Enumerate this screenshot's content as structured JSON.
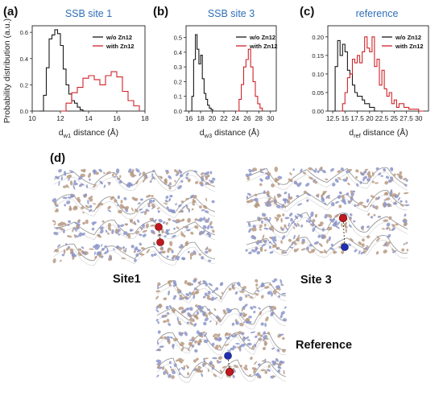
{
  "colors": {
    "series_without": "#1a1a1a",
    "series_with": "#d0232a",
    "title_blue": "#2e6fb8",
    "rna_tan": "#b99a82",
    "rna_blue": "#8c95c8",
    "sphere_red": "#c0181e",
    "sphere_blue": "#1f2eb0"
  },
  "figure": {
    "ylabel": "Probability distribution (a.u.)",
    "panel_d_letter": "(d)",
    "structure_labels": {
      "site1": "Site1",
      "site3": "Site 3",
      "reference": "Reference"
    }
  },
  "chart_data": [
    {
      "panel": "(a)",
      "type": "line",
      "title": "SSB site 1",
      "xlabel_main": "d",
      "xlabel_sub": "w1",
      "xlabel_rest": "distance (Å)",
      "xlim": [
        10,
        18
      ],
      "ylim": [
        0,
        0.65
      ],
      "xticks": [
        "10",
        "12",
        "14",
        "16",
        "18"
      ],
      "yticks": [
        "0.0",
        "0.2",
        "0.4",
        "0.6"
      ],
      "legend": [
        "w/o Zn12",
        "with Zn12"
      ],
      "legend_position": "top-right",
      "series": [
        {
          "name": "w/o Zn12",
          "color": "#1a1a1a",
          "x": [
            10.5,
            10.8,
            11.0,
            11.2,
            11.4,
            11.6,
            11.8,
            12.0,
            12.2,
            12.4,
            12.6,
            12.8,
            13.0,
            13.2,
            13.4,
            13.6,
            13.8
          ],
          "values": [
            0.0,
            0.12,
            0.33,
            0.55,
            0.58,
            0.62,
            0.59,
            0.5,
            0.32,
            0.2,
            0.13,
            0.08,
            0.06,
            0.03,
            0.01,
            0.0,
            0.0
          ]
        },
        {
          "name": "with Zn12",
          "color": "#d0232a",
          "x": [
            12.0,
            12.4,
            12.8,
            13.2,
            13.6,
            14.0,
            14.4,
            14.8,
            15.2,
            15.6,
            16.0,
            16.4,
            16.8,
            17.2,
            17.6
          ],
          "values": [
            0.0,
            0.06,
            0.14,
            0.18,
            0.25,
            0.27,
            0.24,
            0.2,
            0.27,
            0.3,
            0.26,
            0.15,
            0.08,
            0.04,
            0.0
          ]
        }
      ]
    },
    {
      "panel": "(b)",
      "type": "line",
      "title": "SSB site 3",
      "xlabel_main": "d",
      "xlabel_sub": "w3",
      "xlabel_rest": "distance (Å)",
      "xlim": [
        15.5,
        31
      ],
      "ylim": [
        0,
        0.58
      ],
      "xticks": [
        "16",
        "18",
        "20",
        "22",
        "24",
        "26",
        "28",
        "30"
      ],
      "yticks": [
        "0.0",
        "0.1",
        "0.2",
        "0.3",
        "0.4",
        "0.5"
      ],
      "legend": [
        "w/o Zn12",
        "with Zn12"
      ],
      "legend_position": "top-right",
      "series": [
        {
          "name": "w/o Zn12",
          "color": "#1a1a1a",
          "x": [
            16.2,
            16.5,
            16.8,
            17.1,
            17.4,
            17.7,
            18.0,
            18.3,
            18.6,
            18.9,
            19.2,
            19.5,
            19.8,
            20.1
          ],
          "values": [
            0.0,
            0.1,
            0.35,
            0.52,
            0.42,
            0.32,
            0.38,
            0.22,
            0.12,
            0.08,
            0.04,
            0.02,
            0.01,
            0.0
          ]
        },
        {
          "name": "with Zn12",
          "color": "#d0232a",
          "x": [
            24.2,
            24.6,
            25.0,
            25.4,
            25.8,
            26.2,
            26.6,
            27.0,
            27.4,
            27.8,
            28.2,
            28.6
          ],
          "values": [
            0.0,
            0.08,
            0.18,
            0.3,
            0.35,
            0.42,
            0.3,
            0.2,
            0.1,
            0.05,
            0.02,
            0.0
          ]
        }
      ]
    },
    {
      "panel": "(c)",
      "type": "line",
      "title": "reference",
      "xlabel_main": "d",
      "xlabel_sub": "ref",
      "xlabel_rest": "distance (Å)",
      "xlim": [
        11.5,
        32
      ],
      "ylim": [
        0,
        0.23
      ],
      "xticks": [
        "12.5",
        "15",
        "17.5",
        "20",
        "22.5",
        "25",
        "27.5",
        "30"
      ],
      "yticks": [
        "0.00",
        "0.05",
        "0.10",
        "0.15",
        "0.20"
      ],
      "legend": [
        "w/o Zn12",
        "with Zn12"
      ],
      "legend_position": "top-right",
      "series": [
        {
          "name": "w/o Zn12",
          "color": "#1a1a1a",
          "x": [
            12.5,
            13.0,
            13.5,
            14.0,
            14.5,
            15.0,
            15.5,
            16.0,
            16.5,
            17.0,
            17.5,
            18.0,
            18.5,
            19.0,
            19.5,
            20.0,
            20.5,
            21.0,
            21.5
          ],
          "values": [
            0.0,
            0.12,
            0.19,
            0.15,
            0.18,
            0.16,
            0.11,
            0.1,
            0.07,
            0.05,
            0.04,
            0.04,
            0.03,
            0.02,
            0.02,
            0.01,
            0.01,
            0.0,
            0.0
          ]
        },
        {
          "name": "with Zn12",
          "color": "#d0232a",
          "x": [
            14.0,
            14.5,
            15.0,
            15.5,
            16.0,
            16.5,
            17.0,
            17.5,
            18.0,
            18.5,
            19.0,
            19.5,
            20.0,
            20.5,
            21.0,
            21.5,
            22.0,
            22.5,
            23.0,
            23.5,
            24.0,
            24.5,
            25.0,
            25.5,
            26.0,
            27.0,
            28.0,
            29.0,
            30.0,
            31.0
          ],
          "values": [
            0.0,
            0.02,
            0.05,
            0.09,
            0.1,
            0.14,
            0.13,
            0.15,
            0.13,
            0.16,
            0.2,
            0.17,
            0.16,
            0.2,
            0.12,
            0.14,
            0.07,
            0.11,
            0.06,
            0.04,
            0.05,
            0.02,
            0.03,
            0.01,
            0.02,
            0.01,
            0.005,
            0.005,
            0.0,
            0.0
          ]
        }
      ]
    }
  ]
}
